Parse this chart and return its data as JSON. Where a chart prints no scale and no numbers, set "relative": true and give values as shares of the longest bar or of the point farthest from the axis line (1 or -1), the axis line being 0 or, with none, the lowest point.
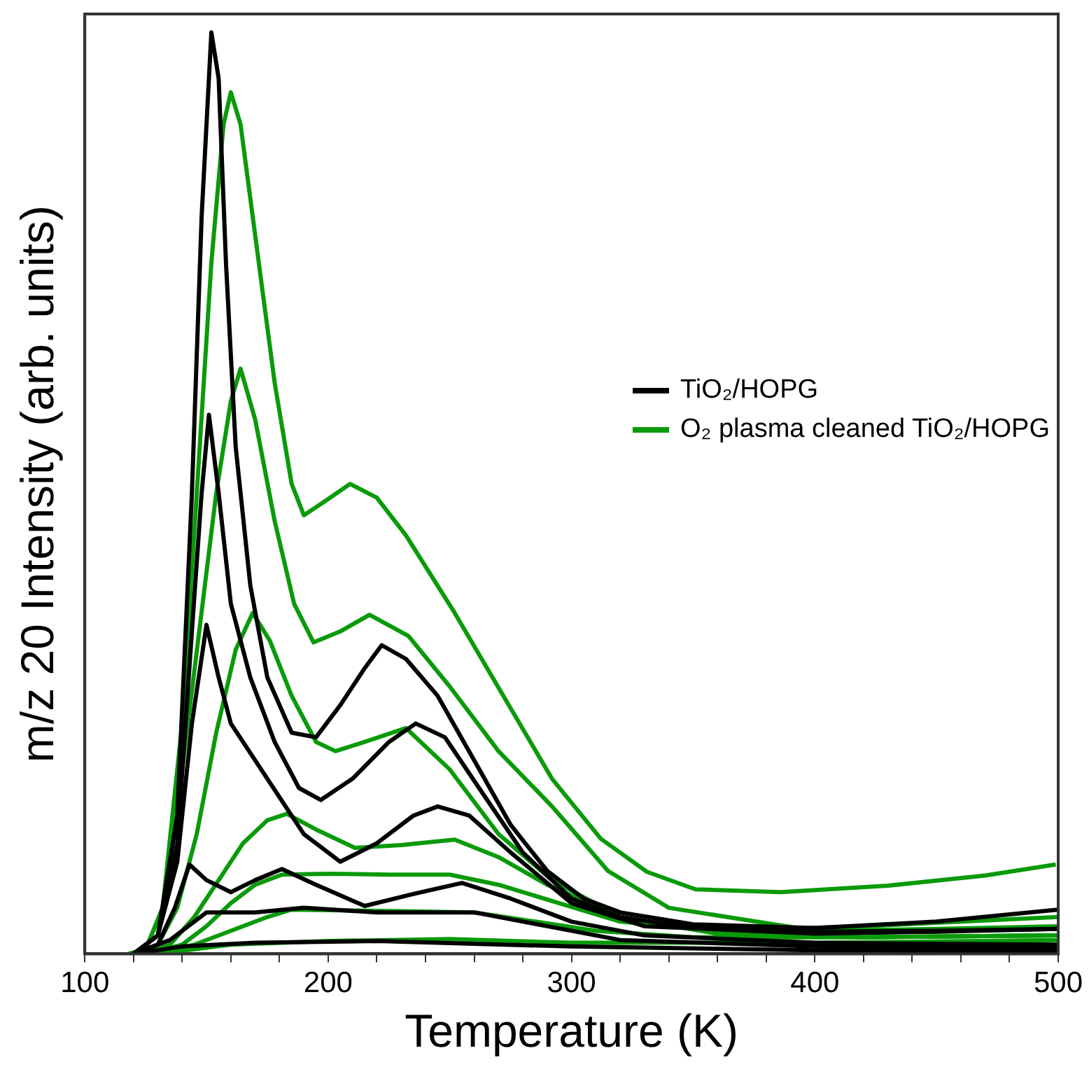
{
  "chart_data": {
    "type": "line",
    "xlabel": "Temperature (K)",
    "ylabel": "m/z 20 Intensity (arb. units)",
    "relative": true,
    "xlim": [
      100,
      500
    ],
    "xticks": [
      100,
      {
        "value": 120,
        "label": null
      },
      {
        "value": 140,
        "label": null
      },
      {
        "value": 160,
        "label": null
      },
      {
        "value": 180,
        "label": null
      },
      200,
      {
        "value": 220,
        "label": null
      },
      {
        "value": 240,
        "label": null
      },
      {
        "value": 260,
        "label": null
      },
      {
        "value": 280,
        "label": null
      },
      300,
      {
        "value": 320,
        "label": null
      },
      {
        "value": 340,
        "label": null
      },
      {
        "value": 360,
        "label": null
      },
      {
        "value": 380,
        "label": null
      },
      400,
      {
        "value": 420,
        "label": null
      },
      {
        "value": 440,
        "label": null
      },
      {
        "value": 460,
        "label": null
      },
      {
        "value": 480,
        "label": null
      },
      500
    ],
    "tick_labels": "x",
    "legend": "top right",
    "marker": "none",
    "line_style": "solid",
    "grid": false,
    "series": [
      {
        "name": "TiO₂/HOPG",
        "color": "#000000",
        "x": [
          120,
          130,
          138,
          144,
          148,
          152,
          155,
          158,
          162,
          168,
          175,
          185,
          195,
          205,
          215,
          222,
          232,
          245,
          260,
          275,
          290,
          305,
          320,
          350,
          400,
          450,
          500
        ],
        "values": [
          0,
          0.02,
          0.15,
          0.5,
          0.8,
          1.0,
          0.95,
          0.75,
          0.55,
          0.4,
          0.3,
          0.24,
          0.235,
          0.27,
          0.31,
          0.335,
          0.32,
          0.28,
          0.21,
          0.14,
          0.09,
          0.06,
          0.045,
          0.032,
          0.028,
          0.035,
          0.048
        ]
      },
      {
        "color": "#000000",
        "x": [
          120,
          130,
          138,
          144,
          148,
          151,
          155,
          160,
          168,
          178,
          188,
          197,
          210,
          225,
          236,
          248,
          262,
          280,
          300,
          320,
          350,
          400,
          450,
          500
        ],
        "values": [
          0,
          0.02,
          0.12,
          0.35,
          0.5,
          0.585,
          0.5,
          0.38,
          0.3,
          0.23,
          0.18,
          0.167,
          0.19,
          0.23,
          0.25,
          0.235,
          0.18,
          0.11,
          0.06,
          0.04,
          0.028,
          0.024,
          0.025,
          0.027
        ]
      },
      {
        "color": "#000000",
        "x": [
          120,
          130,
          138,
          144,
          150,
          155,
          160,
          165,
          175,
          190,
          205,
          220,
          235,
          245,
          258,
          275,
          300,
          330,
          400,
          450,
          500
        ],
        "values": [
          0,
          0.02,
          0.1,
          0.25,
          0.357,
          0.3,
          0.25,
          0.23,
          0.19,
          0.13,
          0.1,
          0.12,
          0.15,
          0.16,
          0.15,
          0.11,
          0.055,
          0.03,
          0.022,
          0.024,
          0.027
        ]
      },
      {
        "color": "#000000",
        "x": [
          120,
          130,
          137,
          143,
          150,
          160,
          170,
          181,
          195,
          215,
          235,
          255,
          275,
          300,
          330,
          400,
          500
        ],
        "values": [
          0,
          0.01,
          0.05,
          0.097,
          0.08,
          0.067,
          0.08,
          0.092,
          0.075,
          0.052,
          0.065,
          0.077,
          0.06,
          0.035,
          0.02,
          0.012,
          0.01
        ]
      },
      {
        "color": "#000000",
        "x": [
          120,
          135,
          150,
          170,
          190,
          220,
          260,
          290,
          320,
          400,
          500
        ],
        "values": [
          0,
          0.015,
          0.045,
          0.045,
          0.05,
          0.045,
          0.045,
          0.03,
          0.015,
          0.008,
          0.006
        ]
      },
      {
        "color": "#000000",
        "x": [
          120,
          140,
          170,
          220,
          300,
          400,
          500
        ],
        "values": [
          0,
          0.008,
          0.012,
          0.014,
          0.008,
          0.004,
          0.003
        ]
      },
      {
        "name": "O₂ plasma cleaned TiO₂/HOPG",
        "color": "#0a9a0a",
        "x": [
          118,
          125,
          132,
          140,
          146,
          152,
          157,
          160,
          164,
          170,
          178,
          185,
          190,
          198,
          209,
          220,
          232,
          252,
          272,
          292,
          312,
          331,
          351,
          386,
          430,
          470,
          499
        ],
        "values": [
          0,
          0.005,
          0.05,
          0.25,
          0.5,
          0.75,
          0.9,
          0.935,
          0.9,
          0.78,
          0.62,
          0.51,
          0.476,
          0.49,
          0.51,
          0.495,
          0.454,
          0.37,
          0.28,
          0.19,
          0.125,
          0.089,
          0.07,
          0.067,
          0.074,
          0.085,
          0.097
        ]
      },
      {
        "color": "#0a9a0a",
        "x": [
          118,
          125,
          132,
          140,
          147,
          154,
          160,
          164,
          170,
          178,
          186,
          194,
          205,
          217,
          233,
          250,
          270,
          292,
          315,
          340,
          400,
          450,
          500
        ],
        "values": [
          0,
          0.005,
          0.05,
          0.2,
          0.35,
          0.5,
          0.6,
          0.635,
          0.58,
          0.47,
          0.38,
          0.338,
          0.35,
          0.368,
          0.345,
          0.29,
          0.22,
          0.16,
          0.09,
          0.05,
          0.025,
          0.027,
          0.03
        ]
      },
      {
        "color": "#0a9a0a",
        "x": [
          120,
          130,
          138,
          146,
          154,
          162,
          169,
          176,
          185,
          195,
          203,
          215,
          232,
          250,
          270,
          292,
          320,
          360,
          420,
          500
        ],
        "values": [
          0,
          0.01,
          0.05,
          0.13,
          0.24,
          0.33,
          0.37,
          0.34,
          0.28,
          0.23,
          0.22,
          0.23,
          0.245,
          0.2,
          0.13,
          0.08,
          0.04,
          0.022,
          0.018,
          0.02
        ]
      },
      {
        "color": "#0a9a0a",
        "x": [
          125,
          135,
          145,
          155,
          165,
          175,
          183,
          195,
          211,
          230,
          252,
          270,
          290,
          320,
          360,
          420,
          500
        ],
        "values": [
          0,
          0.01,
          0.04,
          0.08,
          0.12,
          0.145,
          0.152,
          0.135,
          0.115,
          0.118,
          0.124,
          0.105,
          0.075,
          0.04,
          0.022,
          0.018,
          0.02
        ]
      },
      {
        "color": "#0a9a0a",
        "x": [
          125,
          140,
          150,
          160,
          170,
          181,
          200,
          225,
          250,
          270,
          295,
          320,
          360,
          420,
          500
        ],
        "values": [
          0,
          0.01,
          0.03,
          0.055,
          0.075,
          0.086,
          0.087,
          0.086,
          0.086,
          0.075,
          0.055,
          0.035,
          0.025,
          0.03,
          0.04
        ]
      },
      {
        "color": "#0a9a0a",
        "x": [
          130,
          145,
          160,
          175,
          185,
          210,
          235,
          260,
          285,
          310,
          350,
          420,
          500
        ],
        "values": [
          0,
          0.01,
          0.025,
          0.04,
          0.048,
          0.047,
          0.046,
          0.045,
          0.035,
          0.025,
          0.018,
          0.018,
          0.02
        ]
      },
      {
        "color": "#0a9a0a",
        "x": [
          130,
          160,
          200,
          250,
          300,
          400,
          500
        ],
        "values": [
          0,
          0.01,
          0.014,
          0.016,
          0.012,
          0.012,
          0.015
        ]
      }
    ]
  }
}
